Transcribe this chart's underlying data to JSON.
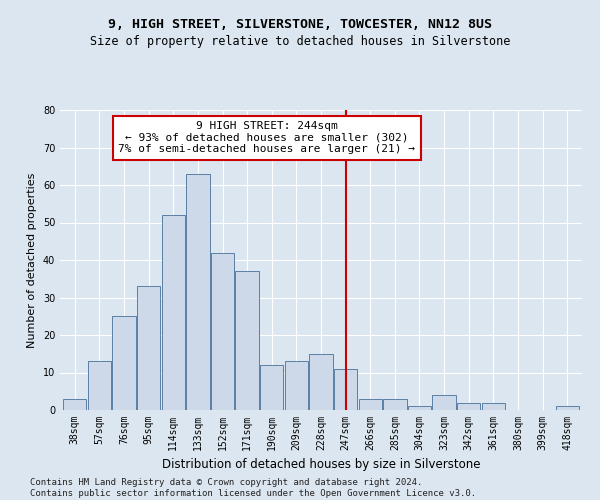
{
  "title1": "9, HIGH STREET, SILVERSTONE, TOWCESTER, NN12 8US",
  "title2": "Size of property relative to detached houses in Silverstone",
  "xlabel": "Distribution of detached houses by size in Silverstone",
  "ylabel": "Number of detached properties",
  "categories": [
    "38sqm",
    "57sqm",
    "76sqm",
    "95sqm",
    "114sqm",
    "133sqm",
    "152sqm",
    "171sqm",
    "190sqm",
    "209sqm",
    "228sqm",
    "247sqm",
    "266sqm",
    "285sqm",
    "304sqm",
    "323sqm",
    "342sqm",
    "361sqm",
    "380sqm",
    "399sqm",
    "418sqm"
  ],
  "values": [
    3,
    13,
    25,
    33,
    52,
    63,
    42,
    37,
    12,
    13,
    15,
    11,
    3,
    3,
    1,
    4,
    2,
    2,
    0,
    0,
    1
  ],
  "bar_facecolor": "#cdd8e8",
  "bar_edgecolor": "#5b7fa6",
  "vline_x_idx": 11,
  "vline_color": "#cc0000",
  "annotation_text": "9 HIGH STREET: 244sqm\n← 93% of detached houses are smaller (302)\n7% of semi-detached houses are larger (21) →",
  "annotation_box_edgecolor": "#cc0000",
  "annotation_box_facecolor": "#ffffff",
  "ylim": [
    0,
    80
  ],
  "yticks": [
    0,
    10,
    20,
    30,
    40,
    50,
    60,
    70,
    80
  ],
  "footer": "Contains HM Land Registry data © Crown copyright and database right 2024.\nContains public sector information licensed under the Open Government Licence v3.0.",
  "background_color": "#dce6f0",
  "plot_background_color": "#dce6f0",
  "grid_color": "#ffffff",
  "title1_fontsize": 9.5,
  "title2_fontsize": 8.5,
  "xlabel_fontsize": 8.5,
  "ylabel_fontsize": 8,
  "tick_fontsize": 7,
  "footer_fontsize": 6.5,
  "annotation_fontsize": 8
}
